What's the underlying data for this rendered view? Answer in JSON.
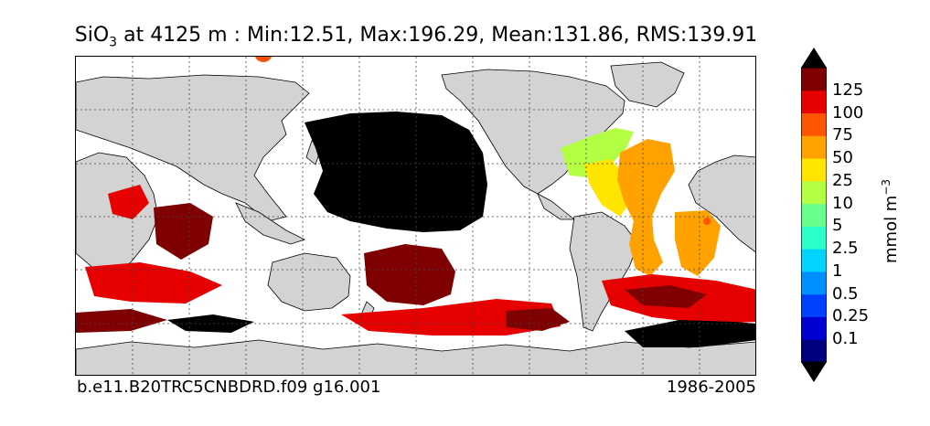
{
  "title": {
    "species": "SiO",
    "subscript": "3",
    "rest": " at 4125 m : Min:12.51, Max:196.29, Mean:131.86, RMS:139.91"
  },
  "footer": {
    "case": "b.e11.B20TRC5CNBDRD.f09 g16.001",
    "years": "1986-2005"
  },
  "colorbar": {
    "unit": "mmol m",
    "unit_exp": "−3",
    "labels": [
      "125",
      "100",
      "75",
      "50",
      "25",
      "10",
      "5",
      "2.5",
      "1",
      "0.5",
      "0.25",
      "0.1"
    ],
    "colors": [
      "#00007f",
      "#0000d0",
      "#0040ff",
      "#0090ff",
      "#00d4ff",
      "#29ffc6",
      "#6aff8d",
      "#b3ff44",
      "#ffe500",
      "#ffa200",
      "#ff5400",
      "#e60000",
      "#7f0000"
    ],
    "under_color": "#000000",
    "over_color": "#000000"
  },
  "map": {
    "land_color": "#d3d3d3",
    "missing_color": "#ffffff",
    "grid": "dotted"
  }
}
